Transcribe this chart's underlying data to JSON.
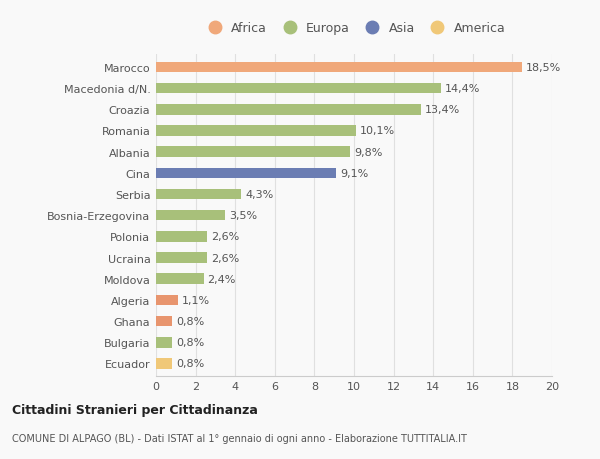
{
  "categories": [
    "Ecuador",
    "Bulgaria",
    "Ghana",
    "Algeria",
    "Moldova",
    "Ucraina",
    "Polonia",
    "Bosnia-Erzegovina",
    "Serbia",
    "Cina",
    "Albania",
    "Romania",
    "Croazia",
    "Macedonia d/N.",
    "Marocco"
  ],
  "values": [
    0.8,
    0.8,
    0.8,
    1.1,
    2.4,
    2.6,
    2.6,
    3.5,
    4.3,
    9.1,
    9.8,
    10.1,
    13.4,
    14.4,
    18.5
  ],
  "labels": [
    "0,8%",
    "0,8%",
    "0,8%",
    "1,1%",
    "2,4%",
    "2,6%",
    "2,6%",
    "3,5%",
    "4,3%",
    "9,1%",
    "9,8%",
    "10,1%",
    "13,4%",
    "14,4%",
    "18,5%"
  ],
  "colors": [
    "#F0C878",
    "#A8C07A",
    "#E8956E",
    "#E8956E",
    "#A8C07A",
    "#A8C07A",
    "#A8C07A",
    "#A8C07A",
    "#A8C07A",
    "#6B7DB3",
    "#A8C07A",
    "#A8C07A",
    "#A8C07A",
    "#A8C07A",
    "#F0A87A"
  ],
  "continent_colors": {
    "Africa": "#F0A87A",
    "Europa": "#A8C07A",
    "Asia": "#6B7DB3",
    "America": "#F0C878"
  },
  "title1": "Cittadini Stranieri per Cittadinanza",
  "title2": "COMUNE DI ALPAGO (BL) - Dati ISTAT al 1° gennaio di ogni anno - Elaborazione TUTTITALIA.IT",
  "xlim": [
    0,
    20
  ],
  "xticks": [
    0,
    2,
    4,
    6,
    8,
    10,
    12,
    14,
    16,
    18,
    20
  ],
  "background_color": "#f9f9f9",
  "grid_color": "#e0e0e0",
  "bar_height": 0.5,
  "label_fontsize": 8,
  "tick_fontsize": 8,
  "legend_fontsize": 9
}
